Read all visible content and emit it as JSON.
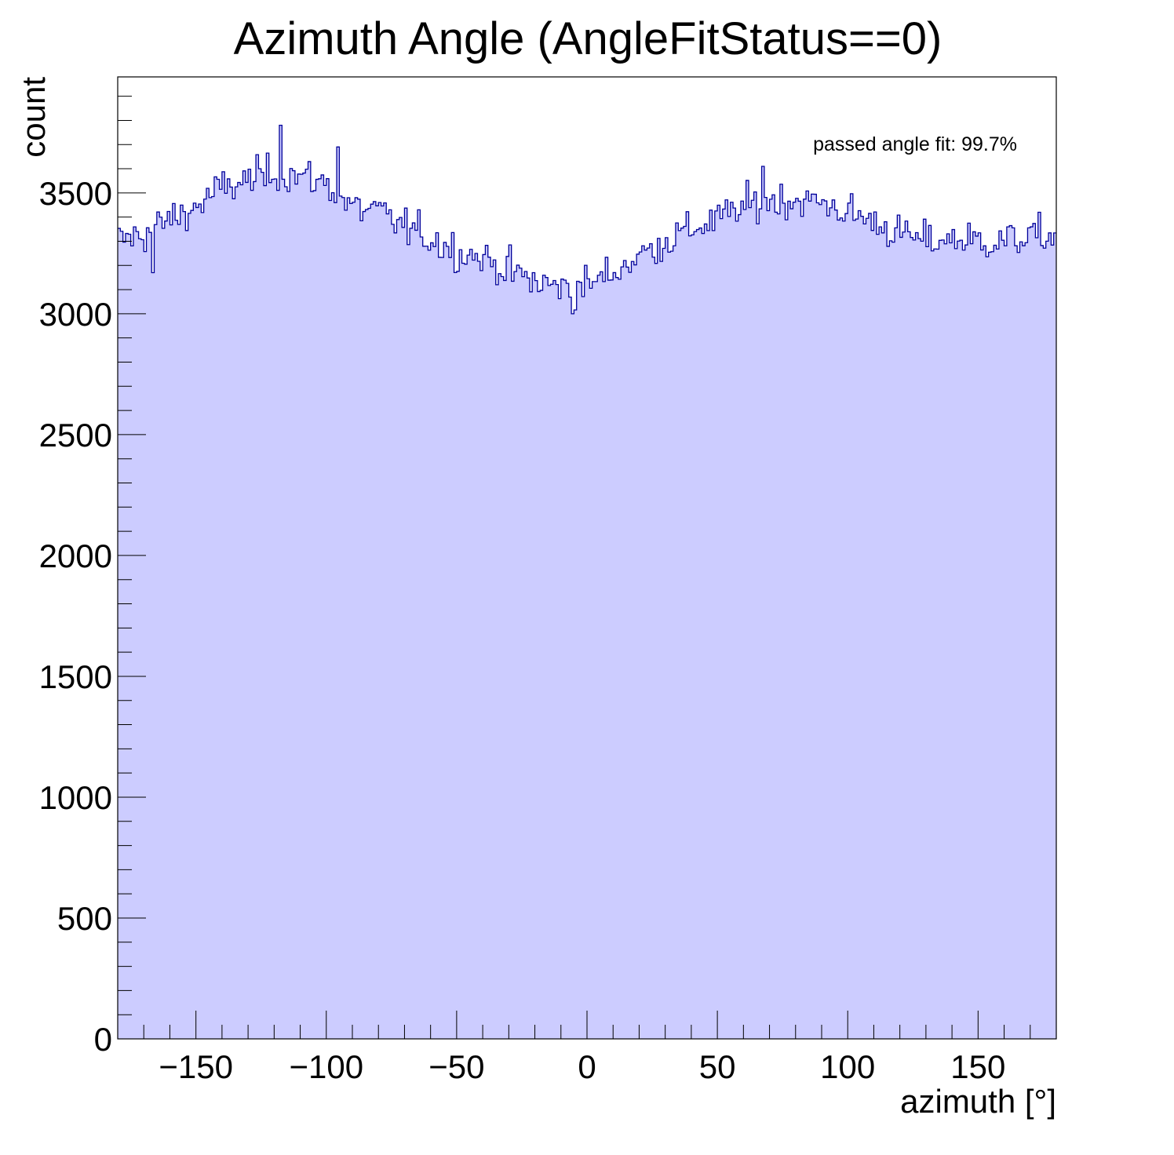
{
  "chart_data": {
    "type": "histogram",
    "title": "Azimuth Angle (AngleFitStatus==0)",
    "xlabel": "azimuth [°]",
    "ylabel": "count",
    "annotation": "passed angle fit: 99.7%",
    "xlim": [
      -180,
      180
    ],
    "ylim": [
      0,
      3980
    ],
    "x_ticks": [
      -150,
      -100,
      -50,
      0,
      50,
      100,
      150
    ],
    "x_tick_labels": [
      "−150",
      "−100",
      "−50",
      "0",
      "50",
      "100",
      "150"
    ],
    "y_ticks": [
      0,
      500,
      1000,
      1500,
      2000,
      2500,
      3000,
      3500
    ],
    "y_tick_labels": [
      "0",
      "500",
      "1000",
      "1500",
      "2000",
      "2500",
      "3000",
      "3500"
    ],
    "bin_width": 1,
    "bin_centers_note": "360 one-degree bins from -180 to 180",
    "fill_color": "#ccccff",
    "line_color": "#000099",
    "grid": false,
    "legend": "none",
    "control_points_x": [
      -180,
      -170,
      -160,
      -150,
      -140,
      -130,
      -120,
      -110,
      -100,
      -90,
      -80,
      -70,
      -60,
      -50,
      -40,
      -30,
      -20,
      -10,
      0,
      10,
      20,
      30,
      40,
      50,
      60,
      70,
      80,
      90,
      100,
      110,
      120,
      130,
      140,
      150,
      160,
      170,
      180
    ],
    "control_points_y": [
      3300,
      3330,
      3390,
      3440,
      3520,
      3550,
      3590,
      3570,
      3540,
      3440,
      3420,
      3360,
      3310,
      3260,
      3230,
      3180,
      3130,
      3110,
      3120,
      3170,
      3240,
      3300,
      3350,
      3390,
      3440,
      3470,
      3470,
      3460,
      3420,
      3380,
      3330,
      3300,
      3310,
      3300,
      3300,
      3320,
      3320
    ],
    "notable_bins": [
      {
        "x": -117.5,
        "y": 3780
      },
      {
        "x": -95.5,
        "y": 3690
      },
      {
        "x": -5.5,
        "y": 3000
      },
      {
        "x": -166.5,
        "y": 3170
      },
      {
        "x": 67.5,
        "y": 3610
      }
    ]
  }
}
